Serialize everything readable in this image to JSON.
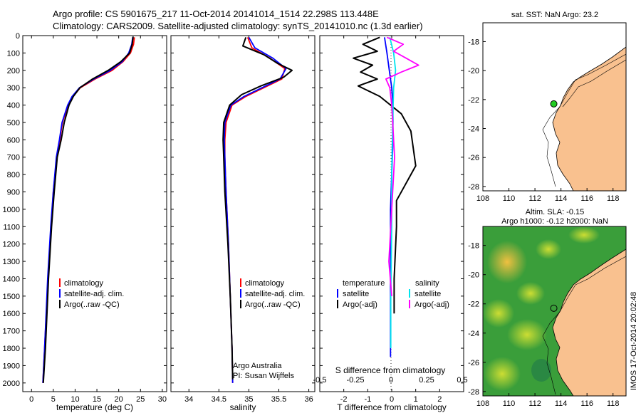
{
  "header": {
    "line1": "Argo profile: CS 5901675_217 11-Oct-2014 20141014_1514 22.298S 113.448E",
    "line2": "Climatology: CARS2009. Satellite-adjusted climatology: synTS_20141010.nc (1.3d earlier)"
  },
  "side_stamp": "IMOS 17-Oct-2014 20:02:48",
  "colors": {
    "climatology": "#ff0000",
    "satellite": "#0000ff",
    "argo": "#000000",
    "salinity_satellite": "#00e5ee",
    "salinity_argo": "#ff00ff",
    "land": "#f9c18f",
    "sst_sea": "#ffffff",
    "argo_marker": "#22cc22"
  },
  "chart_data": [
    {
      "id": "temperature",
      "type": "line",
      "xlabel": "temperature (deg C)",
      "xlim": [
        -2,
        31
      ],
      "xticks": [
        0,
        5,
        10,
        15,
        20,
        25,
        30
      ],
      "ylim": [
        2050,
        0
      ],
      "yticks": [
        0,
        100,
        200,
        300,
        400,
        500,
        600,
        700,
        800,
        900,
        1000,
        1100,
        1200,
        1300,
        1400,
        1500,
        1600,
        1700,
        1800,
        1900,
        2000
      ],
      "legend": [
        "climatology",
        "satellite-adj. clim.",
        "Argo(..raw -QC)"
      ],
      "series": [
        {
          "name": "climatology",
          "color_key": "climatology",
          "x": [
            23.6,
            23.4,
            22.7,
            21.0,
            18.5,
            14.6,
            11.2,
            9.5,
            8.4,
            7.1,
            6.5,
            5.8,
            5.0,
            4.5,
            3.8,
            3.0,
            2.6
          ],
          "y": [
            10,
            50,
            100,
            150,
            200,
            250,
            300,
            350,
            400,
            500,
            600,
            700,
            900,
            1100,
            1400,
            1800,
            2000
          ]
        },
        {
          "name": "satellite-adj. clim.",
          "color_key": "satellite",
          "x": [
            23.2,
            23.0,
            22.3,
            20.8,
            18.1,
            14.3,
            11.0,
            9.3,
            8.3,
            7.0,
            6.4,
            5.7,
            5.0,
            4.4,
            3.7,
            3.0,
            2.6
          ],
          "y": [
            10,
            50,
            100,
            150,
            200,
            250,
            300,
            350,
            400,
            500,
            600,
            700,
            900,
            1100,
            1400,
            1800,
            2000
          ]
        },
        {
          "name": "Argo(..raw -QC)",
          "color_key": "argo",
          "x": [
            23.3,
            23.1,
            22.5,
            20.5,
            17.6,
            14.0,
            11.1,
            9.6,
            8.6,
            7.5,
            6.8,
            5.9,
            5.2,
            4.6,
            3.9,
            3.2,
            2.7
          ],
          "y": [
            5,
            50,
            100,
            150,
            200,
            250,
            300,
            350,
            400,
            500,
            600,
            700,
            900,
            1100,
            1400,
            1800,
            2000
          ]
        }
      ]
    },
    {
      "id": "salinity",
      "type": "line",
      "xlabel": "salinity",
      "xlim": [
        33.7,
        36.1
      ],
      "xticks": [
        34,
        34.5,
        35,
        35.5,
        36
      ],
      "ylim": [
        2050,
        0
      ],
      "legend": [
        "climatology",
        "satellite-adj. clim.",
        "Argo(..raw -QC)"
      ],
      "annotation": [
        "Argo Australia",
        "PI: Susan Wijffels"
      ],
      "series": [
        {
          "name": "climatology",
          "color_key": "climatology",
          "x": [
            34.98,
            35.05,
            35.35,
            35.6,
            35.55,
            35.25,
            34.95,
            34.72,
            34.62,
            34.6,
            34.6,
            34.62,
            34.66,
            34.69,
            34.72,
            34.73
          ],
          "y": [
            10,
            70,
            130,
            190,
            250,
            300,
            350,
            400,
            500,
            600,
            700,
            900,
            1200,
            1500,
            1800,
            2000
          ]
        },
        {
          "name": "satellite-adj. clim.",
          "color_key": "satellite",
          "x": [
            35.0,
            35.1,
            35.4,
            35.62,
            35.52,
            35.22,
            34.92,
            34.7,
            34.6,
            34.59,
            34.6,
            34.62,
            34.66,
            34.69,
            34.72,
            34.73
          ],
          "y": [
            10,
            70,
            130,
            190,
            250,
            300,
            350,
            400,
            500,
            600,
            700,
            900,
            1200,
            1500,
            1800,
            2000
          ]
        },
        {
          "name": "Argo(..raw -QC)",
          "color_key": "argo",
          "x": [
            34.95,
            34.9,
            35.25,
            35.48,
            35.72,
            35.58,
            35.2,
            34.88,
            34.68,
            34.58,
            34.57,
            34.58,
            34.6,
            34.65,
            34.69,
            34.72,
            34.73
          ],
          "y": [
            10,
            60,
            110,
            160,
            200,
            240,
            290,
            340,
            400,
            500,
            600,
            700,
            900,
            1200,
            1500,
            1800,
            1980
          ]
        }
      ]
    },
    {
      "id": "differences",
      "type": "line",
      "xlabel": "T difference from climatology",
      "xlabel_top": "S difference from climatology",
      "xlim": [
        -3,
        3
      ],
      "xticks": [
        -2,
        -1,
        0,
        1,
        2
      ],
      "xticks_top": [
        -0.5,
        -0.25,
        0,
        0.25,
        0.5
      ],
      "ylim": [
        2050,
        0
      ],
      "legend_headers": [
        "temperature",
        "salinity"
      ],
      "legend_temperature": [
        "satellite",
        "Argo(-adj)"
      ],
      "legend_salinity": [
        "satellite",
        "Argo(-adj)"
      ],
      "series": [
        {
          "name": "temperature satellite",
          "color_key": "satellite",
          "x": [
            -0.3,
            -0.2,
            -0.1,
            0.0,
            0.05,
            0.05,
            0.0,
            -0.05,
            -0.05,
            -0.05,
            -0.05
          ],
          "y": [
            10,
            100,
            200,
            300,
            400,
            600,
            800,
            1000,
            1400,
            1800,
            1850
          ]
        },
        {
          "name": "temperature Argo(-adj)",
          "color_key": "argo",
          "x": [
            -0.5,
            -1.2,
            -0.6,
            -1.6,
            -0.8,
            -1.3,
            -0.6,
            -1.4,
            -0.5,
            0.4,
            0.8,
            0.9,
            1.0,
            0.6,
            0.2,
            0.2,
            0.1,
            0.1
          ],
          "y": [
            10,
            50,
            90,
            130,
            170,
            210,
            250,
            290,
            350,
            450,
            550,
            650,
            750,
            850,
            950,
            1100,
            1400,
            1600
          ]
        },
        {
          "name": "salinity satellite",
          "color_key": "salinity_satellite",
          "x": [
            -0.02,
            0.02,
            0.04,
            0.02,
            0.01,
            0.0,
            0.0,
            -0.01,
            -0.01
          ],
          "y": [
            10,
            100,
            200,
            300,
            500,
            800,
            1100,
            1500,
            1800
          ]
        },
        {
          "name": "salinity Argo(-adj)",
          "color_key": "salinity_argo",
          "x": [
            -0.05,
            0.12,
            0.02,
            0.15,
            0.28,
            0.1,
            -0.06,
            -0.02,
            0.0,
            0.03,
            0.0,
            -0.03,
            0.0
          ],
          "y": [
            10,
            50,
            90,
            130,
            170,
            210,
            250,
            300,
            400,
            700,
            1000,
            1300,
            1500
          ]
        }
      ]
    },
    {
      "id": "sst_map",
      "type": "map",
      "title": "sat. SST: NaN Argo: 23.2",
      "xticks": [
        108,
        110,
        112,
        114,
        116,
        118
      ],
      "yticks": [
        -18,
        -20,
        -22,
        -24,
        -26,
        -28
      ],
      "xlim": [
        108,
        119
      ],
      "ylim": [
        -28.3,
        -16.7
      ],
      "argo_position": {
        "lon": 113.448,
        "lat": -22.298
      }
    },
    {
      "id": "sla_map",
      "type": "map",
      "title_line1": "Altim. SLA: -0.15",
      "title_line2": "Argo h1000: -0.12 h2000: NaN",
      "xticks": [
        108,
        110,
        112,
        114,
        116,
        118
      ],
      "yticks": [
        -18,
        -20,
        -22,
        -24,
        -26,
        -28
      ],
      "xlim": [
        108,
        119
      ],
      "ylim": [
        -28.3,
        -16.7
      ],
      "argo_position": {
        "lon": 113.448,
        "lat": -22.298
      }
    }
  ]
}
